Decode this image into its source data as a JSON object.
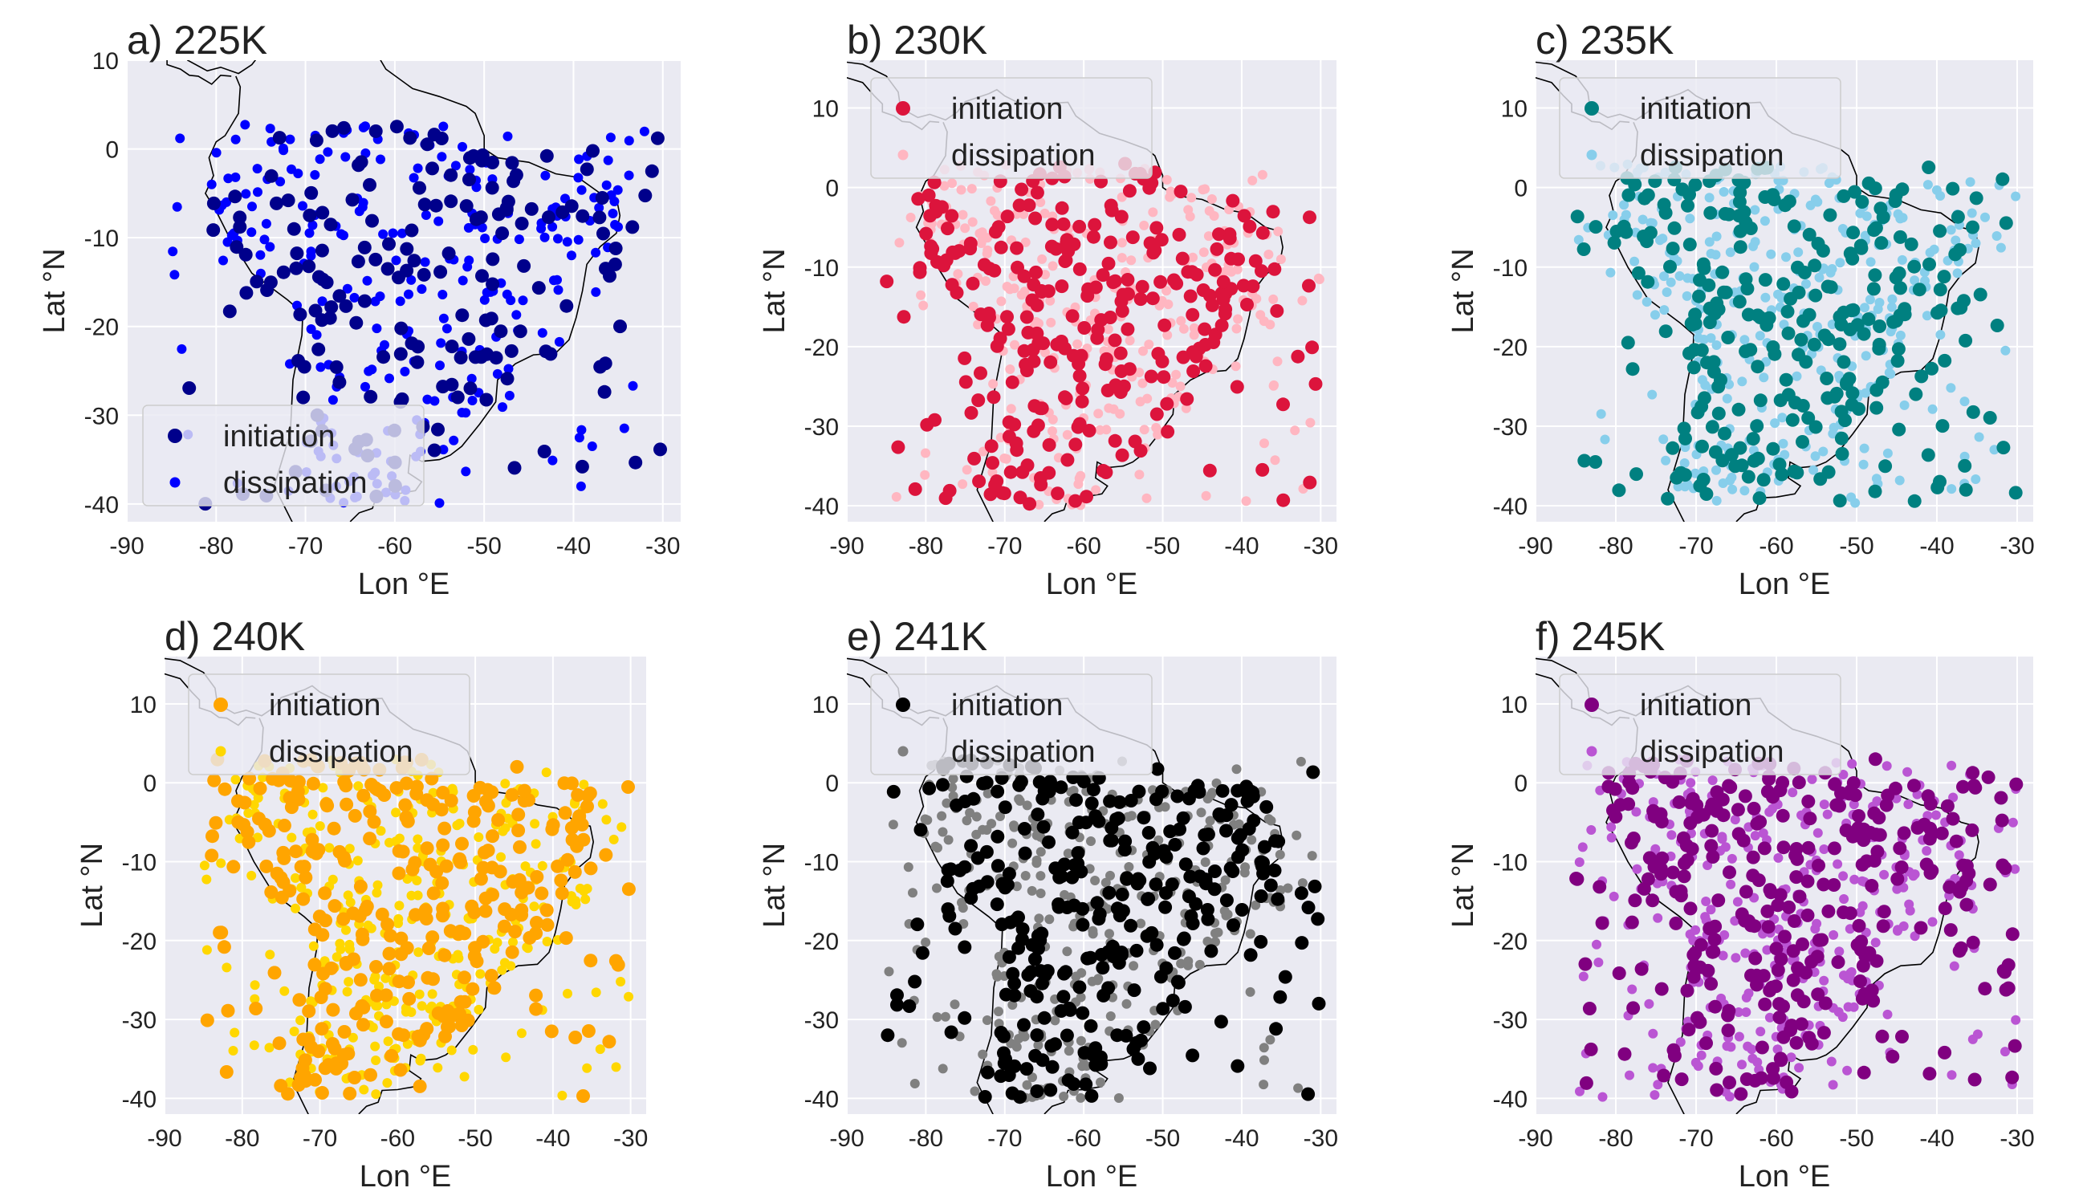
{
  "figure": {
    "background": "#ffffff",
    "axes_background": "#eaeaf2",
    "grid_color": "#ffffff"
  },
  "chart_data": [
    {
      "type": "scatter",
      "title": "a) 225K",
      "xlabel": "Lon $^\\circ$E",
      "ylabel": "Lat $^\\circ$N",
      "xlim": [
        -90,
        -28
      ],
      "ylim": [
        -42,
        10
      ],
      "xticks": [
        "-90",
        "-80",
        "-70",
        "-60",
        "-50",
        "-40",
        "-30"
      ],
      "yticks": [
        "10",
        "0",
        "-10",
        "-20",
        "-30",
        "-40"
      ],
      "grid": true,
      "legend": {
        "placement": "lower-left"
      },
      "series": [
        {
          "name": "initiation",
          "color": "#00008b",
          "role": "initiation",
          "count": 180,
          "seed": 11
        },
        {
          "name": "dissipation",
          "color": "#0000ff",
          "role": "dissipation",
          "count": 260,
          "seed": 12
        }
      ]
    },
    {
      "type": "scatter",
      "title": "b) 230K",
      "xlabel": "Lon $^\\circ$E",
      "ylabel": "Lat $^\\circ$N",
      "xlim": [
        -90,
        -28
      ],
      "ylim": [
        -42,
        16
      ],
      "xticks": [
        "-90",
        "-80",
        "-70",
        "-60",
        "-50",
        "-40",
        "-30"
      ],
      "yticks": [
        "10",
        "0",
        "-10",
        "-20",
        "-30",
        "-40"
      ],
      "grid": true,
      "legend": {
        "placement": "upper-center"
      },
      "series": [
        {
          "name": "initiation",
          "color": "#dc143c",
          "role": "initiation",
          "count": 280,
          "seed": 21
        },
        {
          "name": "dissipation",
          "color": "#ffb6c1",
          "role": "dissipation",
          "count": 300,
          "seed": 22
        }
      ]
    },
    {
      "type": "scatter",
      "title": "c) 235K",
      "xlabel": "Lon $^\\circ$E",
      "ylabel": "Lat $^\\circ$N",
      "xlim": [
        -90,
        -28
      ],
      "ylim": [
        -42,
        16
      ],
      "xticks": [
        "-90",
        "-80",
        "-70",
        "-60",
        "-50",
        "-40",
        "-30"
      ],
      "yticks": [
        "10",
        "0",
        "-10",
        "-20",
        "-30",
        "-40"
      ],
      "grid": true,
      "legend": {
        "placement": "upper-center"
      },
      "series": [
        {
          "name": "initiation",
          "color": "#008080",
          "role": "initiation",
          "count": 280,
          "seed": 31
        },
        {
          "name": "dissipation",
          "color": "#87ceeb",
          "role": "dissipation",
          "count": 320,
          "seed": 32
        }
      ]
    },
    {
      "type": "scatter",
      "title": "d) 240K",
      "xlabel": "Lon $^\\circ$E",
      "ylabel": "Lat $^\\circ$N",
      "xlim": [
        -90,
        -28
      ],
      "ylim": [
        -42,
        16
      ],
      "xticks": [
        "-90",
        "-80",
        "-70",
        "-60",
        "-50",
        "-40",
        "-30"
      ],
      "yticks": [
        "10",
        "0",
        "-10",
        "-20",
        "-30",
        "-40"
      ],
      "grid": true,
      "legend": {
        "placement": "upper-center"
      },
      "series": [
        {
          "name": "initiation",
          "color": "#ffa500",
          "role": "initiation",
          "count": 320,
          "seed": 41
        },
        {
          "name": "dissipation",
          "color": "#ffd700",
          "role": "dissipation",
          "count": 340,
          "seed": 42
        }
      ]
    },
    {
      "type": "scatter",
      "title": "e) 241K",
      "xlabel": "Lon $^\\circ$E",
      "ylabel": "Lat $^\\circ$N",
      "xlim": [
        -90,
        -28
      ],
      "ylim": [
        -42,
        16
      ],
      "xticks": [
        "-90",
        "-80",
        "-70",
        "-60",
        "-50",
        "-40",
        "-30"
      ],
      "yticks": [
        "10",
        "0",
        "-10",
        "-20",
        "-30",
        "-40"
      ],
      "grid": true,
      "legend": {
        "placement": "upper-center"
      },
      "series": [
        {
          "name": "initiation",
          "color": "#000000",
          "role": "initiation",
          "count": 320,
          "seed": 51
        },
        {
          "name": "dissipation",
          "color": "#808080",
          "role": "dissipation",
          "count": 340,
          "seed": 52
        }
      ]
    },
    {
      "type": "scatter",
      "title": "f) 245K",
      "xlabel": "Lon $^\\circ$E",
      "ylabel": "Lat $^\\circ$N",
      "xlim": [
        -90,
        -28
      ],
      "ylim": [
        -42,
        16
      ],
      "xticks": [
        "-90",
        "-80",
        "-70",
        "-60",
        "-50",
        "-40",
        "-30"
      ],
      "yticks": [
        "10",
        "0",
        "-10",
        "-20",
        "-30",
        "-40"
      ],
      "grid": true,
      "legend": {
        "placement": "upper-center"
      },
      "series": [
        {
          "name": "initiation",
          "color": "#800080",
          "role": "initiation",
          "count": 320,
          "seed": 61
        },
        {
          "name": "dissipation",
          "color": "#ba55d3",
          "role": "dissipation",
          "count": 340,
          "seed": 62
        }
      ]
    }
  ]
}
